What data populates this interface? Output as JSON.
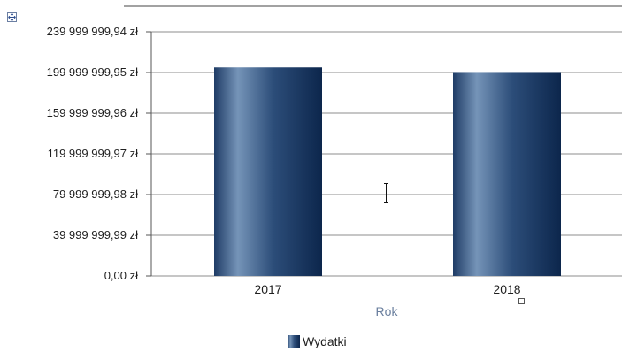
{
  "chart_data": {
    "type": "bar",
    "categories": [
      "2017",
      "2018"
    ],
    "series": [
      {
        "name": "Wydatki",
        "values": [
          205000000,
          200500000
        ]
      }
    ],
    "xlabel": "Rok",
    "ylabel": "",
    "ylim": [
      0,
      239999999.94
    ],
    "yticks": [
      "0,00 zł",
      "39 999 999,99 zł",
      "79 999 999,98 zł",
      "119 999 999,97 zł",
      "159 999 999,96 zł",
      "199 999 999,95 zł",
      "239 999 999,94 zł"
    ],
    "grid": true,
    "legend": "bottom",
    "colors": {
      "bar_dark": "#0f2a52",
      "bar_light": "#6e8fb3",
      "grid": "#8c8c8c",
      "axis_title": "#6a7f9e"
    }
  }
}
